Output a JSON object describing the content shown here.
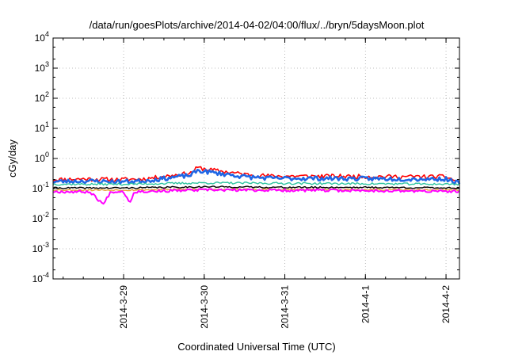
{
  "chart_data": {
    "type": "line",
    "title": "/data/run/goesPlots/archive/2014-04-02/04:00/flux/../bryn/5daysMoon.plot",
    "xlabel": "Coordinated Universal Time (UTC)",
    "ylabel": "cGy/day",
    "yscale": "log",
    "ylim": [
      0.0001,
      10000
    ],
    "yticks": [
      {
        "value": 0.0001,
        "base": "10",
        "exp": "-4"
      },
      {
        "value": 0.001,
        "base": "10",
        "exp": "-3"
      },
      {
        "value": 0.01,
        "base": "10",
        "exp": "-2"
      },
      {
        "value": 0.1,
        "base": "10",
        "exp": "-1"
      },
      {
        "value": 1,
        "base": "10",
        "exp": "0"
      },
      {
        "value": 10,
        "base": "10",
        "exp": "1"
      },
      {
        "value": 100,
        "base": "10",
        "exp": "2"
      },
      {
        "value": 1000,
        "base": "10",
        "exp": "3"
      },
      {
        "value": 10000,
        "base": "10",
        "exp": "4"
      }
    ],
    "xlim": [
      "2014-03-28 03:00",
      "2014-04-02 04:00"
    ],
    "xticks": [
      {
        "label": "2014-3-29",
        "value": "2014-03-29 00:00"
      },
      {
        "label": "2014-3-30",
        "value": "2014-03-30 00:00"
      },
      {
        "label": "2014-3-31",
        "value": "2014-03-31 00:00"
      },
      {
        "label": "2014-4-1",
        "value": "2014-04-01 00:00"
      },
      {
        "label": "2014-4-2",
        "value": "2014-04-02 00:00"
      }
    ],
    "grid": true,
    "series": [
      {
        "color": "#ff0000",
        "width": 1.6,
        "seed": 11,
        "noise": 0.16,
        "points": [
          [
            "2014-03-28 03:00",
            0.2
          ],
          [
            "2014-03-28 12:00",
            0.21
          ],
          [
            "2014-03-28 22:00",
            0.2
          ],
          [
            "2014-03-29 06:00",
            0.21
          ],
          [
            "2014-03-29 20:00",
            0.33
          ],
          [
            "2014-03-29 22:00",
            0.5
          ],
          [
            "2014-03-30 02:00",
            0.42
          ],
          [
            "2014-03-30 12:00",
            0.3
          ],
          [
            "2014-03-30 20:00",
            0.26
          ],
          [
            "2014-03-31 12:00",
            0.26
          ],
          [
            "2014-04-01 12:00",
            0.25
          ],
          [
            "2014-04-02 00:00",
            0.25
          ],
          [
            "2014-04-02 04:00",
            0.16
          ]
        ]
      },
      {
        "color": "#1f66e5",
        "width": 2.6,
        "seed": 23,
        "noise": 0.16,
        "points": [
          [
            "2014-03-28 03:00",
            0.17
          ],
          [
            "2014-03-28 12:00",
            0.18
          ],
          [
            "2014-03-28 22:00",
            0.17
          ],
          [
            "2014-03-29 06:00",
            0.18
          ],
          [
            "2014-03-29 20:00",
            0.28
          ],
          [
            "2014-03-29 22:00",
            0.4
          ],
          [
            "2014-03-30 02:00",
            0.35
          ],
          [
            "2014-03-30 12:00",
            0.25
          ],
          [
            "2014-03-30 20:00",
            0.22
          ],
          [
            "2014-03-31 12:00",
            0.22
          ],
          [
            "2014-04-01 12:00",
            0.21
          ],
          [
            "2014-04-02 00:00",
            0.21
          ],
          [
            "2014-04-02 04:00",
            0.15
          ]
        ]
      },
      {
        "color": "#2ec4a0",
        "width": 1.4,
        "seed": 37,
        "noise": 0.08,
        "points": [
          [
            "2014-03-28 03:00",
            0.14
          ],
          [
            "2014-03-29 00:00",
            0.14
          ],
          [
            "2014-03-30 00:00",
            0.155
          ],
          [
            "2014-03-31 00:00",
            0.15
          ],
          [
            "2014-04-01 00:00",
            0.145
          ],
          [
            "2014-04-02 04:00",
            0.14
          ]
        ]
      },
      {
        "color": "#000000",
        "width": 1.4,
        "seed": 41,
        "noise": 0.06,
        "points": [
          [
            "2014-03-28 03:00",
            0.105
          ],
          [
            "2014-03-29 00:00",
            0.105
          ],
          [
            "2014-03-30 00:00",
            0.115
          ],
          [
            "2014-03-31 00:00",
            0.11
          ],
          [
            "2014-04-01 00:00",
            0.11
          ],
          [
            "2014-04-02 04:00",
            0.105
          ]
        ]
      },
      {
        "color": "#e8a33a",
        "width": 1.4,
        "seed": 53,
        "noise": 0.06,
        "points": [
          [
            "2014-03-28 03:00",
            0.09
          ],
          [
            "2014-03-29 00:00",
            0.09
          ],
          [
            "2014-03-30 00:00",
            0.095
          ],
          [
            "2014-03-31 00:00",
            0.093
          ],
          [
            "2014-04-01 00:00",
            0.092
          ],
          [
            "2014-04-02 04:00",
            0.09
          ]
        ]
      },
      {
        "color": "#ff00ff",
        "width": 2.0,
        "seed": 67,
        "noise": 0.1,
        "points": [
          [
            "2014-03-28 03:00",
            0.08
          ],
          [
            "2014-03-28 14:00",
            0.078
          ],
          [
            "2014-03-28 18:00",
            0.03
          ],
          [
            "2014-03-28 20:00",
            0.075
          ],
          [
            "2014-03-28 21:00",
            0.08
          ],
          [
            "2014-03-29 00:00",
            0.08
          ],
          [
            "2014-03-29 01:00",
            0.05
          ],
          [
            "2014-03-29 02:00",
            0.035
          ],
          [
            "2014-03-29 03:00",
            0.075
          ],
          [
            "2014-03-29 04:00",
            0.08
          ],
          [
            "2014-03-30 00:00",
            0.09
          ],
          [
            "2014-03-31 00:00",
            0.088
          ],
          [
            "2014-04-01 00:00",
            0.086
          ],
          [
            "2014-04-02 04:00",
            0.08
          ]
        ]
      }
    ]
  }
}
